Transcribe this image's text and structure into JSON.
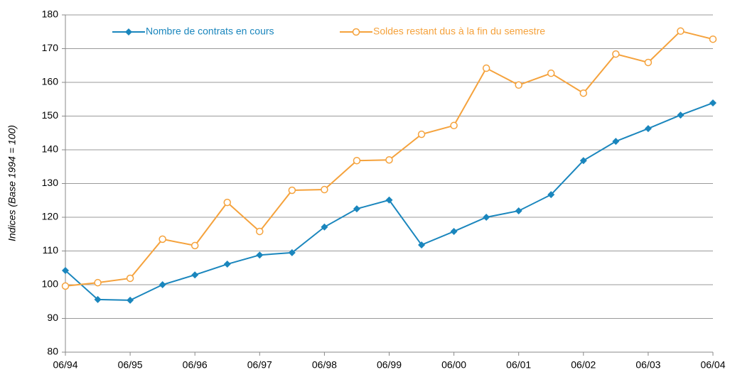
{
  "chart_data": {
    "type": "line",
    "y_label": "Indices (Base 1994 = 100)",
    "categories": [
      "06/94",
      null,
      "06/95",
      null,
      "06/96",
      null,
      "06/97",
      null,
      "06/98",
      null,
      "06/99",
      null,
      "06/00",
      null,
      "06/01",
      null,
      "06/02",
      null,
      "06/03",
      null,
      "06/04"
    ],
    "series": [
      {
        "name": "Nombre de contrats en cours",
        "color": "#1a86bd",
        "marker": "diamond",
        "values": [
          104.2,
          95.6,
          95.4,
          100,
          102.9,
          106.1,
          108.8,
          109.5,
          117.1,
          122.5,
          125.1,
          111.8,
          115.8,
          120,
          121.9,
          126.7,
          136.8,
          142.5,
          146.3,
          150.3,
          153.9
        ]
      },
      {
        "name": "Soldes restant dus à la fin du semestre",
        "color": "#f5a23c",
        "marker": "circle",
        "values": [
          99.6,
          100.6,
          101.9,
          113.5,
          111.6,
          124.4,
          115.8,
          128,
          128.2,
          136.8,
          137,
          144.6,
          147.2,
          164.2,
          159.2,
          162.7,
          156.8,
          168.4,
          165.9,
          175.2,
          172.8
        ]
      }
    ],
    "ylim": [
      80,
      180
    ],
    "yticks": [
      80,
      90,
      100,
      110,
      120,
      130,
      140,
      150,
      160,
      170,
      180
    ],
    "grid": true,
    "legend": "top"
  }
}
